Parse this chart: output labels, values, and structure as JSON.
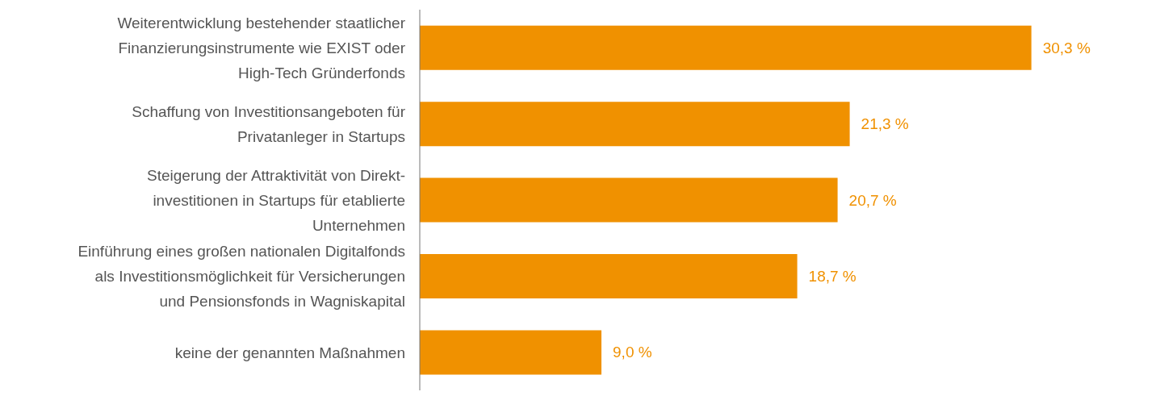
{
  "chart_data": {
    "type": "bar",
    "orientation": "horizontal",
    "relative": false,
    "categories": [
      "Weiterentwicklung bestehender staatlicher\nFinanzierungsinstrumente wie EXIST oder\nHigh-Tech Gründerfonds",
      "Schaffung von Investitionsangeboten für\nPrivatanleger in Startups",
      "Steigerung der Attraktivität von Direkt-\ninvestitionen in Startups für etablierte\nUnternehmen",
      "Einführung eines großen nationalen Digitalfonds\nals Investitionsmöglichkeit für Versicherungen\nund Pensionsfonds in Wagniskapital",
      "keine der genannten Maßnahmen"
    ],
    "values": [
      30.3,
      21.3,
      20.7,
      18.7,
      9.0
    ],
    "value_labels": [
      "30,3 %",
      "21,3 %",
      "20,7 %",
      "18,7 %",
      "9,0 %"
    ],
    "color": "#f09100"
  }
}
